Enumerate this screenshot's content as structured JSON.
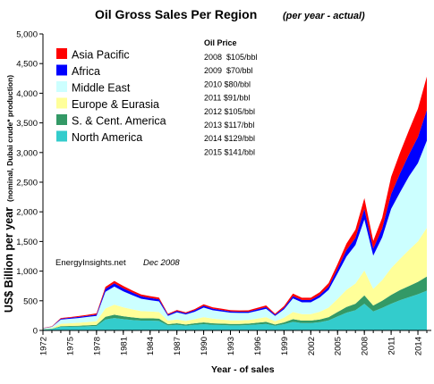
{
  "chart_data": {
    "type": "area",
    "title": "Oil Gross Sales Per Region",
    "subtitle": "(per year - actual)",
    "xlabel": "Year - of sales",
    "ylabel": "US$ Billion per year",
    "ylabel_note": "(nominal, Dubai crude* production)",
    "xlim": [
      1972,
      2015.5
    ],
    "ylim": [
      0,
      5000
    ],
    "x_ticks": [
      1972,
      1975,
      1978,
      1981,
      1984,
      1987,
      1990,
      1993,
      1996,
      1999,
      2002,
      2005,
      2008,
      2011,
      2014
    ],
    "y_ticks": [
      0,
      500,
      1000,
      1500,
      2000,
      2500,
      3000,
      3500,
      4000,
      4500,
      5000
    ],
    "y_tick_labels": [
      "0",
      "500",
      "1,000",
      "1,500",
      "2,000",
      "2,500",
      "3,000",
      "3,500",
      "4,000",
      "4,500",
      "5,000"
    ],
    "grid": false,
    "legend_position": "top-left",
    "stacked": true,
    "x": [
      1972,
      1973,
      1974,
      1975,
      1976,
      1977,
      1978,
      1979,
      1980,
      1981,
      1982,
      1983,
      1984,
      1985,
      1986,
      1987,
      1988,
      1989,
      1990,
      1991,
      1992,
      1993,
      1994,
      1995,
      1996,
      1997,
      1998,
      1999,
      2000,
      2001,
      2002,
      2003,
      2004,
      2005,
      2006,
      2007,
      2008,
      2009,
      2010,
      2011,
      2012,
      2013,
      2014,
      2015
    ],
    "series": [
      {
        "name": "North America",
        "color": "#33cccc",
        "values": [
          15,
          25,
          60,
          62,
          65,
          70,
          75,
          185,
          210,
          190,
          175,
          165,
          165,
          160,
          85,
          95,
          80,
          95,
          105,
          95,
          90,
          85,
          85,
          90,
          100,
          110,
          80,
          105,
          145,
          125,
          125,
          140,
          170,
          235,
          300,
          340,
          450,
          320,
          380,
          450,
          510,
          560,
          610,
          670
        ]
      },
      {
        "name": "S. & Cent. America",
        "color": "#339966",
        "values": [
          3,
          5,
          12,
          14,
          15,
          17,
          20,
          45,
          55,
          50,
          45,
          40,
          40,
          40,
          20,
          25,
          20,
          25,
          30,
          25,
          25,
          25,
          25,
          25,
          30,
          35,
          20,
          30,
          45,
          40,
          40,
          45,
          55,
          75,
          95,
          110,
          140,
          100,
          120,
          150,
          170,
          190,
          210,
          240
        ]
      },
      {
        "name": "Europe & Eurasia",
        "color": "#ffff99",
        "values": [
          5,
          10,
          40,
          45,
          50,
          55,
          60,
          140,
          170,
          150,
          135,
          120,
          115,
          110,
          60,
          65,
          60,
          70,
          90,
          80,
          70,
          60,
          60,
          60,
          70,
          80,
          55,
          80,
          120,
          110,
          110,
          130,
          160,
          220,
          290,
          340,
          420,
          280,
          350,
          450,
          530,
          610,
          680,
          820
        ]
      },
      {
        "name": "Middle East",
        "color": "#ccffff",
        "values": [
          12,
          20,
          70,
          75,
          80,
          85,
          90,
          280,
          305,
          270,
          240,
          210,
          190,
          180,
          80,
          120,
          110,
          125,
          160,
          140,
          135,
          130,
          125,
          120,
          130,
          140,
          90,
          140,
          230,
          200,
          200,
          240,
          300,
          430,
          560,
          650,
          860,
          560,
          720,
          1000,
          1120,
          1240,
          1320,
          1470
        ]
      },
      {
        "name": "Africa",
        "color": "#0000ff",
        "values": [
          3,
          5,
          15,
          16,
          18,
          20,
          22,
          50,
          55,
          50,
          45,
          40,
          38,
          35,
          20,
          22,
          20,
          25,
          30,
          28,
          25,
          22,
          22,
          22,
          25,
          28,
          20,
          28,
          40,
          38,
          38,
          45,
          55,
          80,
          110,
          120,
          180,
          120,
          150,
          250,
          320,
          370,
          440,
          520
        ]
      },
      {
        "name": "Asia Pacific",
        "color": "#ff0000",
        "values": [
          2,
          5,
          12,
          13,
          15,
          17,
          20,
          35,
          40,
          38,
          35,
          32,
          30,
          28,
          15,
          18,
          15,
          20,
          25,
          22,
          22,
          20,
          20,
          22,
          25,
          28,
          18,
          28,
          40,
          38,
          38,
          45,
          60,
          80,
          110,
          140,
          180,
          130,
          180,
          290,
          350,
          410,
          480,
          560
        ]
      }
    ],
    "price_table": {
      "heading": "Oil Price",
      "rows": [
        "2008  $105/bbl",
        "2009  $70/bbl",
        "2010 $80/bbl",
        "2011 $91/bbl",
        "2012 $105/bbl",
        "2013 $117/bbl",
        "2014 $129/bbl",
        "2015 $141/bbl"
      ]
    },
    "credit": {
      "source": "EnergyInsights.net",
      "date": "Dec 2008"
    }
  }
}
